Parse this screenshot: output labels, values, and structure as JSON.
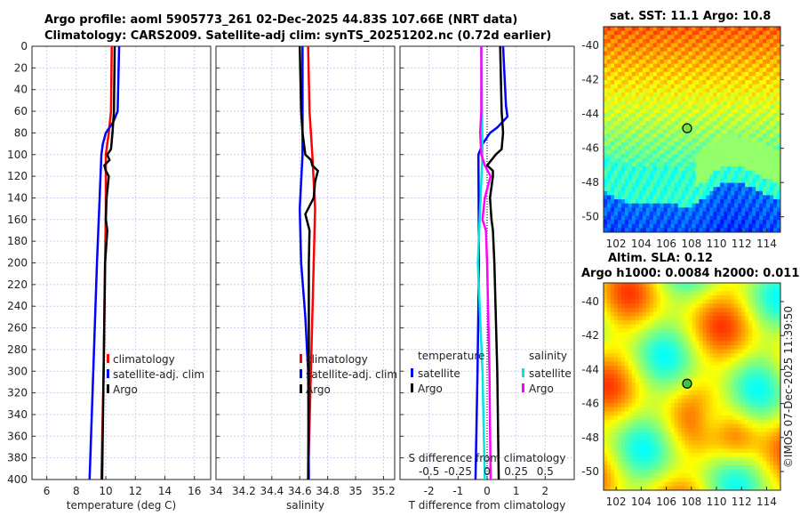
{
  "title_line1": "Argo profile: aoml 5905773_261 02-Dec-2025 44.83S 107.66E (NRT data)",
  "title_line2": "Climatology: CARS2009. Satellite-adj clim: synTS_20251202.nc (0.72d earlier)",
  "credit": "©IMOS 07-Dec-2025 11:39:50",
  "chart_data": [
    {
      "type": "line",
      "id": "temp",
      "xlabel": "temperature (deg C)",
      "xlim": [
        5,
        17.1
      ],
      "ylim": [
        0,
        400
      ],
      "yticks": [
        0,
        20,
        40,
        60,
        80,
        100,
        120,
        140,
        160,
        180,
        200,
        220,
        240,
        260,
        280,
        300,
        320,
        340,
        360,
        380,
        400
      ],
      "xticks": [
        6,
        8,
        10,
        12,
        14,
        16
      ],
      "xticklabels": [
        "6",
        "8",
        "10",
        "12",
        "14",
        "16"
      ],
      "legend": [
        "climatology",
        "satellite-adj. clim",
        "Argo"
      ],
      "series": [
        {
          "name": "climatology",
          "color": "#ff0000",
          "depth": [
            0,
            60,
            80,
            100,
            150,
            200,
            300,
            400
          ],
          "values": [
            10.4,
            10.35,
            10.2,
            10.0,
            10.0,
            9.95,
            9.85,
            9.7
          ]
        },
        {
          "name": "satellite-adj. clim",
          "color": "#0000ff",
          "depth": [
            0,
            60,
            70,
            80,
            90,
            100,
            150,
            200,
            300,
            400
          ],
          "values": [
            10.9,
            10.8,
            10.5,
            10.0,
            9.8,
            9.7,
            9.55,
            9.4,
            9.15,
            8.9
          ]
        },
        {
          "name": "Argo",
          "color": "#000000",
          "depth": [
            0,
            60,
            80,
            95,
            100,
            105,
            110,
            115,
            120,
            140,
            160,
            170,
            200,
            300,
            400
          ],
          "values": [
            10.6,
            10.55,
            10.45,
            10.35,
            10.1,
            10.25,
            9.9,
            10.0,
            10.2,
            10.05,
            10.0,
            10.1,
            9.95,
            9.85,
            9.75
          ]
        }
      ]
    },
    {
      "type": "line",
      "id": "sal",
      "xlabel": "salinity",
      "xlim": [
        34,
        35.28
      ],
      "ylim": [
        0,
        400
      ],
      "xticks": [
        34,
        34.2,
        34.4,
        34.6,
        34.8,
        35,
        35.2
      ],
      "xticklabels": [
        "34",
        "34.2",
        "34.4",
        "34.6",
        "34.8",
        "35",
        "35.2"
      ],
      "legend": [
        "climatology",
        "satellite-adj. clim",
        "Argo"
      ],
      "series": [
        {
          "name": "climatology",
          "color": "#ff0000",
          "depth": [
            0,
            60,
            100,
            150,
            200,
            300,
            400
          ],
          "values": [
            34.66,
            34.67,
            34.69,
            34.71,
            34.7,
            34.68,
            34.66
          ]
        },
        {
          "name": "satellite-adj. clim",
          "color": "#0000ff",
          "depth": [
            0,
            60,
            100,
            150,
            200,
            250,
            300,
            400
          ],
          "values": [
            34.62,
            34.62,
            34.62,
            34.6,
            34.61,
            34.64,
            34.66,
            34.665
          ]
        },
        {
          "name": "Argo",
          "color": "#000000",
          "depth": [
            0,
            60,
            80,
            100,
            105,
            110,
            115,
            125,
            140,
            155,
            160,
            170,
            200,
            300,
            400
          ],
          "values": [
            34.6,
            34.61,
            34.62,
            34.64,
            34.68,
            34.69,
            34.73,
            34.71,
            34.7,
            34.64,
            34.65,
            34.67,
            34.665,
            34.665,
            34.66
          ]
        }
      ]
    },
    {
      "type": "line",
      "id": "diff",
      "xlabel": "T difference from climatology",
      "xlim": [
        -3,
        3
      ],
      "ylim": [
        0,
        400
      ],
      "xticks": [
        -2,
        -1,
        0,
        1,
        2
      ],
      "xticklabels": [
        "-2",
        "-1",
        "0",
        "1",
        "2"
      ],
      "s_label": "S difference from climatology",
      "s_xlim": [
        -0.75,
        0.75
      ],
      "s_ticks": [
        -0.5,
        -0.25,
        0,
        0.25,
        0.5
      ],
      "s_ticklabels": [
        "-0.5",
        "-0.25",
        "0",
        "0.25",
        "0.5"
      ],
      "legend_temp_title": "temperature",
      "legend_sal_title": "salinity",
      "series": [
        {
          "name": "satellite",
          "group": "temperature",
          "axis": "T",
          "color": "#0000ff",
          "depth": [
            0,
            55,
            65,
            75,
            80,
            90,
            100,
            200,
            300,
            400
          ],
          "values": [
            0.55,
            0.65,
            0.7,
            0.35,
            0.1,
            -0.15,
            -0.3,
            -0.28,
            -0.33,
            -0.4
          ]
        },
        {
          "name": "Argo",
          "group": "temperature",
          "axis": "T",
          "color": "#000000",
          "depth": [
            0,
            60,
            80,
            95,
            100,
            110,
            115,
            120,
            140,
            160,
            170,
            200,
            300,
            400
          ],
          "values": [
            0.45,
            0.5,
            0.55,
            0.5,
            0.3,
            0.0,
            0.2,
            0.2,
            0.1,
            0.15,
            0.2,
            0.25,
            0.35,
            0.4
          ]
        },
        {
          "name": "satellite",
          "group": "salinity",
          "axis": "S",
          "color": "#00e5e5",
          "depth": [
            0,
            100,
            200,
            300,
            400
          ],
          "values": [
            -0.05,
            -0.04,
            -0.08,
            -0.04,
            -0.02
          ]
        },
        {
          "name": "Argo",
          "group": "salinity",
          "axis": "S",
          "color": "#ff00ff",
          "depth": [
            0,
            60,
            80,
            100,
            110,
            120,
            140,
            160,
            170,
            200,
            300,
            400
          ],
          "values": [
            -0.05,
            -0.05,
            -0.06,
            -0.05,
            -0.02,
            0.03,
            -0.02,
            -0.04,
            -0.01,
            0.0,
            0.02,
            0.03
          ]
        }
      ]
    },
    {
      "type": "heatmap",
      "id": "sst",
      "title": "sat. SST: 11.1 Argo: 10.8",
      "xlim": [
        101,
        115.1
      ],
      "ylim": [
        -50.9,
        -38.9
      ],
      "xticks": [
        102,
        104,
        106,
        108,
        110,
        112,
        114
      ],
      "yticks": [
        -40,
        -42,
        -44,
        -46,
        -48,
        -50
      ],
      "argo_lon": 107.66,
      "argo_lat": -44.83,
      "argo_color": "#7fe03a"
    },
    {
      "type": "heatmap",
      "id": "sla",
      "title": "Altim. SLA: 0.12",
      "subtitle": "Argo h1000: 0.0084 h2000: 0.011",
      "xlim": [
        101,
        115.1
      ],
      "ylim": [
        -51.1,
        -38.9
      ],
      "xticks": [
        102,
        104,
        106,
        108,
        110,
        112,
        114
      ],
      "yticks": [
        -40,
        -42,
        -44,
        -46,
        -48,
        -50
      ],
      "argo_lon": 107.66,
      "argo_lat": -44.83,
      "argo_color": "#3ec43e"
    }
  ]
}
